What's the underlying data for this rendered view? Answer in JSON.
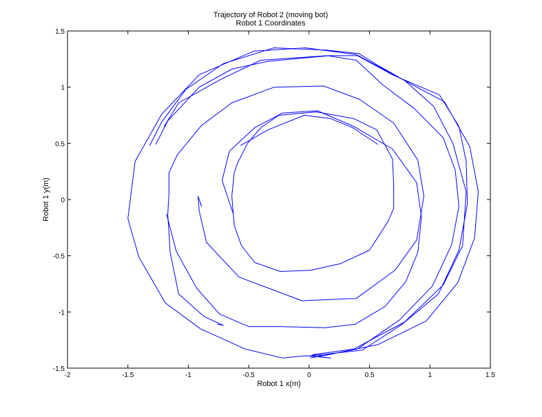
{
  "chart_data": {
    "type": "line",
    "title": "Trajectory of Robot 2 (moving bot)",
    "subtitle": "Robot 1 Coordinates",
    "xlabel": "Robot 1 x(m)",
    "ylabel": "Robot 1 y(m)",
    "xlim": [
      -2,
      1.5
    ],
    "ylim": [
      -1.5,
      1.5
    ],
    "xticks": [
      -2,
      -1.5,
      -1,
      -0.5,
      0,
      0.5,
      1,
      1.5
    ],
    "yticks": [
      -1.5,
      -1,
      -0.5,
      0,
      0.5,
      1,
      1.5
    ],
    "grid": false,
    "line_color": "#0000ff",
    "series": [
      {
        "points": [
          [
            -1.27,
            0.49
          ],
          [
            -1.17,
            0.7
          ],
          [
            -0.91,
            1.0
          ],
          [
            -0.64,
            1.16
          ],
          [
            -0.34,
            1.23
          ],
          [
            0.17,
            1.28
          ],
          [
            0.4,
            1.28
          ],
          [
            0.69,
            1.11
          ],
          [
            1.08,
            0.93
          ],
          [
            1.24,
            0.65
          ],
          [
            1.3,
            0.34
          ],
          [
            1.31,
            -0.04
          ],
          [
            1.24,
            -0.45
          ],
          [
            1.07,
            -0.84
          ],
          [
            0.77,
            -1.11
          ],
          [
            0.44,
            -1.34
          ],
          [
            0.01,
            -1.39
          ],
          [
            0.18,
            -1.41
          ],
          [
            -0.03,
            -1.39
          ],
          [
            -0.22,
            -1.41
          ],
          [
            -0.53,
            -1.33
          ],
          [
            -0.9,
            -1.15
          ],
          [
            -1.19,
            -0.92
          ],
          [
            -1.41,
            -0.51
          ],
          [
            -1.5,
            -0.17
          ],
          [
            -1.44,
            0.34
          ],
          [
            -1.22,
            0.76
          ],
          [
            -0.91,
            1.11
          ],
          [
            -0.46,
            1.32
          ],
          [
            -0.03,
            1.35
          ],
          [
            0.39,
            1.29
          ],
          [
            0.79,
            1.06
          ],
          [
            1.03,
            0.83
          ],
          [
            1.19,
            0.5
          ],
          [
            1.3,
            0.07
          ],
          [
            1.27,
            -0.41
          ],
          [
            1.11,
            -0.76
          ],
          [
            0.79,
            -1.09
          ],
          [
            0.37,
            -1.33
          ],
          [
            0.03,
            -1.38
          ],
          [
            0.12,
            -1.39
          ],
          [
            0.57,
            -1.29
          ],
          [
            0.97,
            -1.08
          ],
          [
            1.23,
            -0.74
          ],
          [
            1.37,
            -0.34
          ],
          [
            1.4,
            0.07
          ],
          [
            1.33,
            0.47
          ],
          [
            1.12,
            0.87
          ],
          [
            0.84,
            1.03
          ],
          [
            0.56,
            1.2
          ],
          [
            0.41,
            1.3
          ],
          [
            0.14,
            1.33
          ],
          [
            -0.29,
            1.35
          ],
          [
            -0.71,
            1.21
          ],
          [
            -1.02,
            0.98
          ],
          [
            -1.22,
            0.69
          ],
          [
            -1.32,
            0.48
          ]
        ]
      },
      {
        "points": [
          [
            -1.2,
            0.65
          ],
          [
            -1.08,
            0.86
          ],
          [
            -0.88,
            0.98
          ],
          [
            -0.73,
            1.07
          ],
          [
            -0.4,
            1.24
          ],
          [
            0.15,
            1.28
          ],
          [
            0.39,
            1.24
          ],
          [
            0.61,
            1.02
          ],
          [
            0.87,
            0.81
          ],
          [
            1.11,
            0.55
          ],
          [
            1.21,
            0.26
          ],
          [
            1.24,
            -0.06
          ],
          [
            1.18,
            -0.4
          ],
          [
            1.02,
            -0.77
          ],
          [
            0.75,
            -1.07
          ],
          [
            0.4,
            -1.33
          ],
          [
            0.01,
            -1.41
          ]
        ]
      },
      {
        "points": [
          [
            -0.76,
            -1.11
          ],
          [
            -0.71,
            -1.12
          ],
          [
            -0.87,
            -1.04
          ],
          [
            -1.08,
            -0.84
          ],
          [
            -1.15,
            -0.47
          ],
          [
            -1.17,
            -0.13
          ],
          [
            -1.16,
            0.06
          ],
          [
            -1.16,
            0.24
          ],
          [
            -1.09,
            0.4
          ],
          [
            -0.89,
            0.66
          ],
          [
            -0.64,
            0.86
          ],
          [
            -0.29,
            1.0
          ],
          [
            0.12,
            1.01
          ],
          [
            0.42,
            0.89
          ],
          [
            0.7,
            0.68
          ],
          [
            0.9,
            0.35
          ],
          [
            0.95,
            0.03
          ],
          [
            0.89,
            -0.36
          ],
          [
            0.71,
            -0.63
          ],
          [
            0.39,
            -0.88
          ],
          [
            -0.06,
            -0.9
          ],
          [
            -0.58,
            -0.69
          ],
          [
            -0.85,
            -0.38
          ],
          [
            -0.91,
            -0.1
          ],
          [
            -0.92,
            0.03
          ],
          [
            -0.89,
            -0.06
          ],
          [
            -0.9,
            -0.04
          ]
        ]
      },
      {
        "points": [
          [
            -1.18,
            -0.13
          ],
          [
            -1.1,
            -0.46
          ],
          [
            -0.93,
            -0.79
          ],
          [
            -0.74,
            -1.02
          ],
          [
            -0.5,
            -1.13
          ],
          [
            -0.24,
            -1.13
          ],
          [
            0.13,
            -1.14
          ],
          [
            0.38,
            -1.11
          ],
          [
            0.63,
            -0.95
          ],
          [
            0.8,
            -0.73
          ],
          [
            0.9,
            -0.47
          ],
          [
            0.93,
            -0.16
          ],
          [
            0.89,
            0.15
          ],
          [
            0.69,
            0.45
          ],
          [
            0.37,
            0.65
          ],
          [
            0.07,
            0.79
          ],
          [
            -0.22,
            0.77
          ],
          [
            -0.45,
            0.64
          ],
          [
            -0.66,
            0.43
          ],
          [
            -0.72,
            0.17
          ],
          [
            -0.63,
            -0.12
          ]
        ]
      },
      {
        "points": [
          [
            -0.62,
            0.24
          ],
          [
            -0.64,
            0.03
          ],
          [
            -0.62,
            -0.23
          ],
          [
            -0.56,
            -0.41
          ],
          [
            -0.45,
            -0.56
          ],
          [
            -0.24,
            -0.64
          ],
          [
            0.01,
            -0.63
          ],
          [
            0.26,
            -0.57
          ],
          [
            0.5,
            -0.45
          ],
          [
            0.65,
            -0.2
          ],
          [
            0.7,
            -0.08
          ],
          [
            0.7,
            0.13
          ],
          [
            0.69,
            0.36
          ],
          [
            0.56,
            0.62
          ],
          [
            0.37,
            0.72
          ],
          [
            0.06,
            0.78
          ],
          [
            -0.25,
            0.75
          ],
          [
            -0.4,
            0.64
          ],
          [
            -0.51,
            0.5
          ],
          [
            -0.59,
            0.33
          ],
          [
            -0.62,
            0.24
          ]
        ]
      },
      {
        "points": [
          [
            -0.57,
            0.48
          ],
          [
            -0.34,
            0.62
          ],
          [
            -0.04,
            0.75
          ],
          [
            0.18,
            0.72
          ],
          [
            0.36,
            0.64
          ],
          [
            0.57,
            0.49
          ]
        ]
      }
    ]
  }
}
